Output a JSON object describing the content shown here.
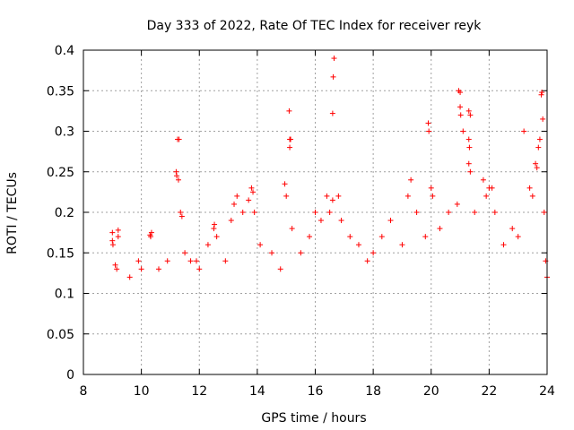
{
  "chart_data": {
    "type": "scatter",
    "title": "Day 333 of 2022, Rate Of TEC Index for receiver reyk",
    "xlabel": "GPS time / hours",
    "ylabel": "ROTI / TECUs",
    "xlim": [
      8,
      24
    ],
    "ylim": [
      0,
      0.4
    ],
    "xticks": [
      8,
      10,
      12,
      14,
      16,
      18,
      20,
      22,
      24
    ],
    "xtick_labels": [
      "8",
      "10",
      "12",
      "14",
      "16",
      "18",
      "20",
      "22",
      "24"
    ],
    "yticks": [
      0,
      0.05,
      0.1,
      0.15,
      0.2,
      0.25,
      0.3,
      0.35,
      0.4
    ],
    "ytick_labels": [
      "0",
      "0.05",
      "0.1",
      "0.15",
      "0.2",
      "0.25",
      "0.3",
      "0.35",
      "0.4"
    ],
    "grid": true,
    "marker": "plus",
    "marker_color": "#ff0000",
    "series": [
      {
        "points": [
          [
            9.0,
            0.175
          ],
          [
            9.0,
            0.165
          ],
          [
            9.02,
            0.16
          ],
          [
            9.2,
            0.178
          ],
          [
            9.2,
            0.17
          ],
          [
            9.1,
            0.135
          ],
          [
            9.15,
            0.13
          ],
          [
            9.6,
            0.12
          ],
          [
            9.9,
            0.14
          ],
          [
            10.0,
            0.13
          ],
          [
            10.3,
            0.172
          ],
          [
            10.32,
            0.17
          ],
          [
            10.35,
            0.175
          ],
          [
            10.6,
            0.13
          ],
          [
            10.9,
            0.14
          ],
          [
            11.2,
            0.25
          ],
          [
            11.22,
            0.245
          ],
          [
            11.25,
            0.29
          ],
          [
            11.3,
            0.29
          ],
          [
            11.28,
            0.24
          ],
          [
            11.35,
            0.2
          ],
          [
            11.4,
            0.195
          ],
          [
            11.5,
            0.15
          ],
          [
            11.7,
            0.14
          ],
          [
            11.9,
            0.14
          ],
          [
            12.0,
            0.13
          ],
          [
            12.3,
            0.16
          ],
          [
            12.5,
            0.18
          ],
          [
            12.52,
            0.185
          ],
          [
            12.6,
            0.17
          ],
          [
            12.9,
            0.14
          ],
          [
            13.1,
            0.19
          ],
          [
            13.2,
            0.21
          ],
          [
            13.3,
            0.22
          ],
          [
            13.5,
            0.2
          ],
          [
            13.7,
            0.215
          ],
          [
            13.8,
            0.23
          ],
          [
            13.85,
            0.225
          ],
          [
            13.9,
            0.2
          ],
          [
            14.1,
            0.16
          ],
          [
            14.5,
            0.15
          ],
          [
            14.8,
            0.13
          ],
          [
            14.95,
            0.235
          ],
          [
            15.0,
            0.22
          ],
          [
            15.1,
            0.325
          ],
          [
            15.12,
            0.29
          ],
          [
            15.15,
            0.29
          ],
          [
            15.12,
            0.28
          ],
          [
            15.2,
            0.18
          ],
          [
            15.5,
            0.15
          ],
          [
            15.8,
            0.17
          ],
          [
            16.0,
            0.2
          ],
          [
            16.2,
            0.19
          ],
          [
            16.4,
            0.22
          ],
          [
            16.5,
            0.2
          ],
          [
            16.6,
            0.215
          ],
          [
            16.65,
            0.39
          ],
          [
            16.62,
            0.367
          ],
          [
            16.6,
            0.322
          ],
          [
            16.8,
            0.22
          ],
          [
            16.9,
            0.19
          ],
          [
            17.2,
            0.17
          ],
          [
            17.5,
            0.16
          ],
          [
            17.8,
            0.14
          ],
          [
            18.0,
            0.15
          ],
          [
            18.3,
            0.17
          ],
          [
            18.6,
            0.19
          ],
          [
            19.0,
            0.16
          ],
          [
            19.2,
            0.22
          ],
          [
            19.3,
            0.24
          ],
          [
            19.5,
            0.2
          ],
          [
            19.8,
            0.17
          ],
          [
            19.9,
            0.31
          ],
          [
            19.92,
            0.3
          ],
          [
            20.0,
            0.23
          ],
          [
            20.05,
            0.22
          ],
          [
            20.3,
            0.18
          ],
          [
            20.6,
            0.2
          ],
          [
            20.9,
            0.21
          ],
          [
            20.95,
            0.35
          ],
          [
            21.0,
            0.348
          ],
          [
            21.0,
            0.33
          ],
          [
            21.02,
            0.32
          ],
          [
            21.1,
            0.3
          ],
          [
            21.3,
            0.325
          ],
          [
            21.35,
            0.32
          ],
          [
            21.3,
            0.29
          ],
          [
            21.32,
            0.28
          ],
          [
            21.3,
            0.26
          ],
          [
            21.35,
            0.25
          ],
          [
            21.5,
            0.2
          ],
          [
            21.8,
            0.24
          ],
          [
            21.9,
            0.22
          ],
          [
            22.0,
            0.23
          ],
          [
            22.1,
            0.23
          ],
          [
            22.2,
            0.2
          ],
          [
            22.5,
            0.16
          ],
          [
            22.8,
            0.18
          ],
          [
            23.0,
            0.17
          ],
          [
            23.2,
            0.3
          ],
          [
            23.4,
            0.23
          ],
          [
            23.5,
            0.22
          ],
          [
            23.6,
            0.26
          ],
          [
            23.65,
            0.255
          ],
          [
            23.7,
            0.28
          ],
          [
            23.75,
            0.29
          ],
          [
            23.8,
            0.345
          ],
          [
            23.82,
            0.348
          ],
          [
            23.85,
            0.315
          ],
          [
            23.9,
            0.2
          ],
          [
            23.95,
            0.14
          ],
          [
            24.0,
            0.12
          ]
        ]
      }
    ]
  }
}
